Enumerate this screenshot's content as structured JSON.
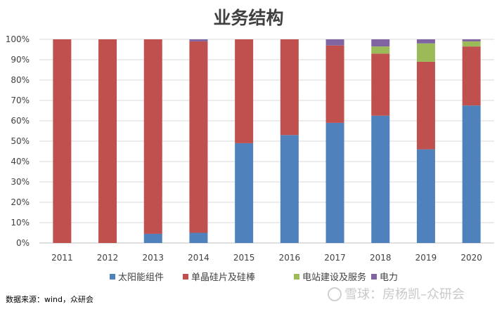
{
  "chart_data": {
    "type": "bar",
    "stacked": true,
    "title": "业务结构",
    "categories": [
      "2011",
      "2012",
      "2013",
      "2014",
      "2015",
      "2016",
      "2017",
      "2018",
      "2019",
      "2020"
    ],
    "series": [
      {
        "name": "太阳能组件",
        "color": "#4f81bd",
        "values": [
          0,
          0,
          4.5,
          5,
          49,
          53,
          59,
          62.5,
          46,
          67.5
        ]
      },
      {
        "name": "单晶硅片及硅棒",
        "color": "#c0504d",
        "values": [
          100,
          100,
          95.5,
          94,
          51,
          47,
          38,
          30.5,
          43,
          29
        ]
      },
      {
        "name": "电站建设及服务",
        "color": "#9bbb59",
        "values": [
          0,
          0,
          0,
          0,
          0,
          0,
          0,
          3.5,
          9,
          2.5
        ]
      },
      {
        "name": "电力",
        "color": "#8064a2",
        "values": [
          0,
          0,
          0,
          1,
          0,
          0,
          3,
          3.5,
          2,
          1
        ]
      }
    ],
    "y_ticks": [
      "0%",
      "10%",
      "20%",
      "30%",
      "40%",
      "50%",
      "60%",
      "70%",
      "80%",
      "90%",
      "100%"
    ],
    "ylim": [
      0,
      100
    ],
    "legend_position": "bottom",
    "grid": true
  },
  "source_note": "数据来源：wind，众研会",
  "watermark": "雪球：房杨凯–众研会"
}
